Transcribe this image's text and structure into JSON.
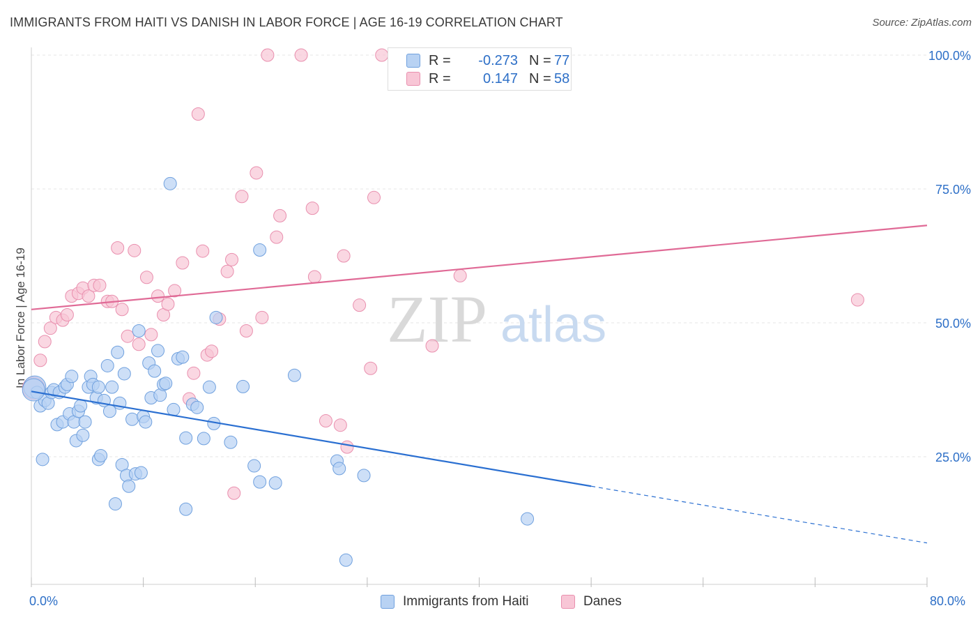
{
  "title": "IMMIGRANTS FROM HAITI VS DANISH IN LABOR FORCE | AGE 16-19 CORRELATION CHART",
  "source": "Source: ZipAtlas.com",
  "watermark": {
    "zip": "ZIP",
    "atlas": "atlas"
  },
  "colors": {
    "blue_fill": "#b8d2f3",
    "blue_stroke": "#6fa0de",
    "blue_line": "#2a6fd1",
    "pink_fill": "#f8c6d6",
    "pink_stroke": "#e98fae",
    "pink_line": "#e06a96",
    "tick_label": "#2d6fc7",
    "grid": "#e4e4e4"
  },
  "legend_top": {
    "rows": [
      {
        "r_label": "R =",
        "r_value": "-0.273",
        "n_label": "N =",
        "n_value": "77"
      },
      {
        "r_label": "R =",
        "r_value": "0.147",
        "n_label": "N =",
        "n_value": "58"
      }
    ]
  },
  "legend_bottom": {
    "items": [
      "Immigrants from Haiti",
      "Danes"
    ]
  },
  "chart_data": {
    "type": "scatter",
    "title": "IMMIGRANTS FROM HAITI VS DANISH IN LABOR FORCE | AGE 16-19 CORRELATION CHART",
    "xlabel": "",
    "ylabel": "In Labor Force | Age 16-19",
    "xlim": [
      0,
      80
    ],
    "ylim": [
      0,
      105
    ],
    "x_tick_labels": [
      "0.0%",
      "80.0%"
    ],
    "y_ticks": [
      25,
      50,
      75,
      100
    ],
    "y_tick_labels": [
      "25.0%",
      "50.0%",
      "75.0%",
      "100.0%"
    ],
    "grid": true,
    "legend_placement": "bottom",
    "series": [
      {
        "name": "Immigrants from Haiti",
        "r": -0.273,
        "n": 77,
        "trend": {
          "x0": 0,
          "y0": 37.2,
          "x1": 50,
          "y1": 19.5,
          "dashed_to_x": 80,
          "dashed_to_y": 8.9
        },
        "points": [
          [
            0.3,
            38
          ],
          [
            0.5,
            37
          ],
          [
            0.8,
            34.5
          ],
          [
            1.0,
            24.5
          ],
          [
            1.2,
            35.5
          ],
          [
            1.5,
            35
          ],
          [
            1.8,
            37
          ],
          [
            2.0,
            37.5
          ],
          [
            2.3,
            31
          ],
          [
            2.5,
            37
          ],
          [
            2.8,
            31.5
          ],
          [
            3.0,
            38
          ],
          [
            3.2,
            38.5
          ],
          [
            3.4,
            33
          ],
          [
            3.6,
            40
          ],
          [
            3.8,
            31.5
          ],
          [
            4.0,
            28
          ],
          [
            4.2,
            33.5
          ],
          [
            4.4,
            34.5
          ],
          [
            4.6,
            29
          ],
          [
            4.8,
            31.5
          ],
          [
            5.1,
            38
          ],
          [
            5.3,
            40
          ],
          [
            5.5,
            38.5
          ],
          [
            5.8,
            36
          ],
          [
            6.0,
            38
          ],
          [
            6.0,
            24.5
          ],
          [
            6.2,
            25.2
          ],
          [
            6.5,
            35.5
          ],
          [
            6.8,
            42
          ],
          [
            7.0,
            33.5
          ],
          [
            7.2,
            38
          ],
          [
            7.5,
            16.2
          ],
          [
            7.7,
            44.5
          ],
          [
            7.9,
            35
          ],
          [
            8.1,
            23.5
          ],
          [
            8.3,
            40.5
          ],
          [
            8.5,
            21.5
          ],
          [
            8.7,
            19.5
          ],
          [
            9.0,
            32
          ],
          [
            9.3,
            21.8
          ],
          [
            9.6,
            48.5
          ],
          [
            9.8,
            22
          ],
          [
            10.0,
            32.5
          ],
          [
            10.2,
            31.5
          ],
          [
            10.5,
            42.5
          ],
          [
            10.7,
            36
          ],
          [
            11.0,
            41
          ],
          [
            11.3,
            44.8
          ],
          [
            11.5,
            36.5
          ],
          [
            11.8,
            38.5
          ],
          [
            12.0,
            38.7
          ],
          [
            12.4,
            76
          ],
          [
            12.7,
            33.8
          ],
          [
            13.1,
            43.3
          ],
          [
            13.5,
            43.6
          ],
          [
            13.8,
            15.2
          ],
          [
            13.8,
            28.5
          ],
          [
            14.4,
            34.8
          ],
          [
            14.8,
            34.2
          ],
          [
            15.4,
            28.4
          ],
          [
            15.9,
            38
          ],
          [
            16.3,
            31.2
          ],
          [
            16.5,
            51
          ],
          [
            17.8,
            27.7
          ],
          [
            18.9,
            38.1
          ],
          [
            19.9,
            23.3
          ],
          [
            20.4,
            63.6
          ],
          [
            20.4,
            20.3
          ],
          [
            21.8,
            20.1
          ],
          [
            23.5,
            40.2
          ],
          [
            27.3,
            24.2
          ],
          [
            27.5,
            22.8
          ],
          [
            28.1,
            5.7
          ],
          [
            29.7,
            21.5
          ],
          [
            44.3,
            13.4
          ],
          [
            0.2,
            37.5
          ]
        ]
      },
      {
        "name": "Danes",
        "r": 0.147,
        "n": 58,
        "trend": {
          "x0": 0,
          "y0": 52.5,
          "x1": 80,
          "y1": 68.2
        },
        "points": [
          [
            0.2,
            37.8
          ],
          [
            0.8,
            43
          ],
          [
            1.2,
            46.5
          ],
          [
            1.7,
            49
          ],
          [
            2.2,
            51
          ],
          [
            2.8,
            50.5
          ],
          [
            3.2,
            51.5
          ],
          [
            3.6,
            55
          ],
          [
            4.2,
            55.5
          ],
          [
            4.6,
            56.5
          ],
          [
            5.1,
            55
          ],
          [
            5.6,
            57
          ],
          [
            6.1,
            57
          ],
          [
            6.8,
            54
          ],
          [
            7.2,
            54
          ],
          [
            7.7,
            64
          ],
          [
            8.1,
            52.5
          ],
          [
            8.6,
            47.5
          ],
          [
            9.2,
            63.5
          ],
          [
            9.6,
            46
          ],
          [
            10.3,
            58.5
          ],
          [
            10.7,
            47.8
          ],
          [
            11.3,
            55
          ],
          [
            11.8,
            51.5
          ],
          [
            12.2,
            53.5
          ],
          [
            12.8,
            56
          ],
          [
            13.5,
            61.2
          ],
          [
            14.1,
            35.8
          ],
          [
            14.5,
            40.6
          ],
          [
            15.3,
            63.4
          ],
          [
            15.7,
            44
          ],
          [
            16.1,
            44.7
          ],
          [
            16.8,
            50.7
          ],
          [
            17.5,
            59.6
          ],
          [
            17.9,
            61.8
          ],
          [
            18.1,
            18.2
          ],
          [
            18.8,
            73.6
          ],
          [
            19.2,
            48.5
          ],
          [
            20.1,
            78
          ],
          [
            20.6,
            51
          ],
          [
            21.1,
            100
          ],
          [
            21.9,
            66
          ],
          [
            22.2,
            70
          ],
          [
            24.1,
            100
          ],
          [
            25.1,
            71.4
          ],
          [
            25.3,
            58.6
          ],
          [
            26.3,
            31.7
          ],
          [
            27.6,
            30.9
          ],
          [
            27.9,
            62.5
          ],
          [
            28.2,
            26.8
          ],
          [
            29.3,
            53.3
          ],
          [
            30.3,
            41.5
          ],
          [
            30.6,
            73.4
          ],
          [
            31.3,
            100
          ],
          [
            35.8,
            45.7
          ],
          [
            38.3,
            58.8
          ],
          [
            73.8,
            54.3
          ],
          [
            14.9,
            89
          ]
        ]
      }
    ]
  }
}
